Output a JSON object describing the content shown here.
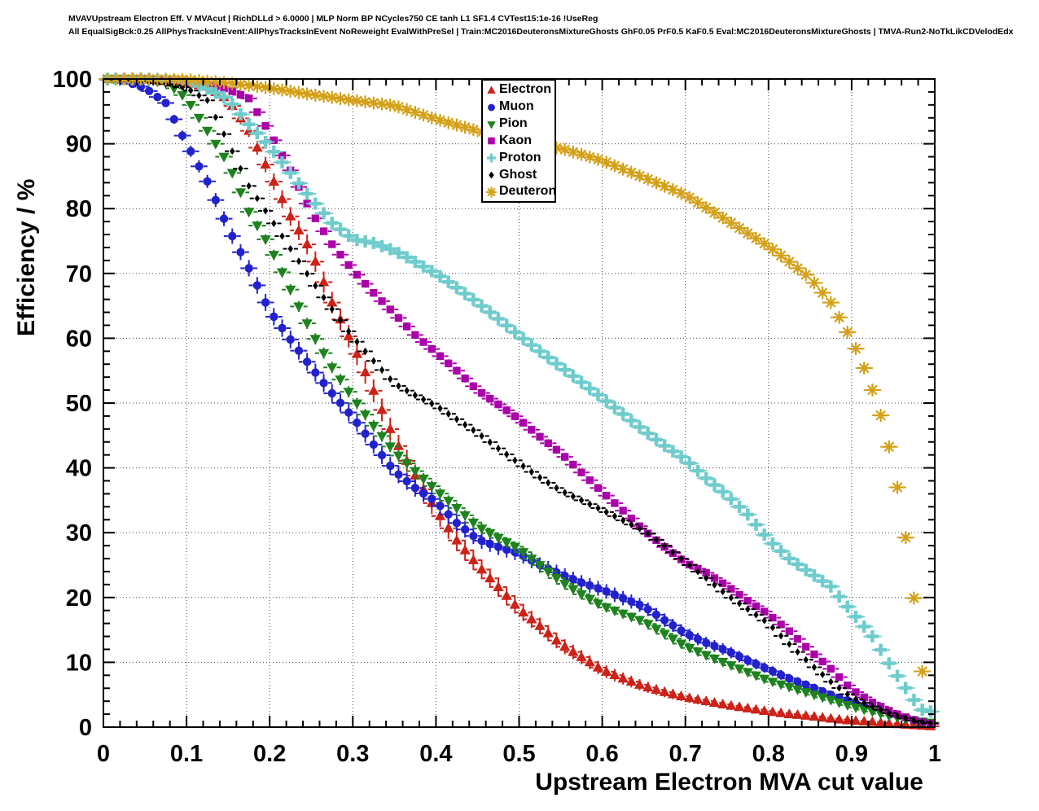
{
  "titles": {
    "line1": "MVAVUpstream Electron Eff. V MVAcut | RichDLLd > 6.0000 | MLP Norm BP NCycles750 CE tanh L1 SF1.4 CVTest15:1e-16 !UseReg",
    "line2": "All EqualSigBck:0.25 AllPhysTracksInEvent:AllPhysTracksInEvent NoReweight EvalWithPreSel | Train:MC2016DeuteronsMixtureGhosts GhF0.05 PrF0.5 KaF0.5 Eval:MC2016DeuteronsMixtureGhosts | TMVA-Run2-NoTkLikCDVelodEdx"
  },
  "axes": {
    "x": {
      "label": "Upstream Electron MVA cut value",
      "min": 0,
      "max": 1,
      "major_ticks": [
        0,
        0.1,
        0.2,
        0.3,
        0.4,
        0.5,
        0.6,
        0.7,
        0.8,
        0.9,
        1
      ],
      "tick_labels": [
        "0",
        "0.1",
        "0.2",
        "0.3",
        "0.4",
        "0.5",
        "0.6",
        "0.7",
        "0.8",
        "0.9",
        "1"
      ],
      "minor_step": 0.02
    },
    "y": {
      "label": "Efficiency / %",
      "min": 0,
      "max": 100,
      "major_ticks": [
        0,
        10,
        20,
        30,
        40,
        50,
        60,
        70,
        80,
        90,
        100
      ],
      "tick_labels": [
        "0",
        "10",
        "20",
        "30",
        "40",
        "50",
        "60",
        "70",
        "80",
        "90",
        "100"
      ],
      "minor_step": 2
    }
  },
  "legend": {
    "entries": [
      {
        "label": "Electron",
        "marker": "triangle-up",
        "color": "#cc2218"
      },
      {
        "label": "Muon",
        "marker": "circle",
        "color": "#2222cc"
      },
      {
        "label": "Pion",
        "marker": "triangle-down",
        "color": "#1e821e"
      },
      {
        "label": "Kaon",
        "marker": "square",
        "color": "#aa00aa"
      },
      {
        "label": "Proton",
        "marker": "plus",
        "color": "#70cccc"
      },
      {
        "label": "Ghost",
        "marker": "diamond",
        "color": "#000000"
      },
      {
        "label": "Deuteron",
        "marker": "asterisk",
        "color": "#d4a017"
      }
    ]
  },
  "chart_data": {
    "type": "scatter",
    "title": "",
    "xlabel": "Upstream Electron MVA cut value",
    "ylabel": "Efficiency / %",
    "xlim": [
      0,
      1
    ],
    "ylim": [
      0,
      100
    ],
    "grid": true,
    "grid_style": "dotted",
    "legend_position": "top-center",
    "marker_step": 0.01,
    "series": [
      {
        "name": "Electron",
        "marker": "triangle-up",
        "color": "#cc2218",
        "err": 14,
        "points": [
          [
            0,
            100
          ],
          [
            0.05,
            100
          ],
          [
            0.1,
            99.4
          ],
          [
            0.125,
            98.8
          ],
          [
            0.15,
            96.8
          ],
          [
            0.175,
            92
          ],
          [
            0.2,
            85.5
          ],
          [
            0.225,
            78.8
          ],
          [
            0.25,
            73.4
          ],
          [
            0.275,
            65.5
          ],
          [
            0.3,
            59
          ],
          [
            0.325,
            51.9
          ],
          [
            0.35,
            44.5
          ],
          [
            0.375,
            38.8
          ],
          [
            0.4,
            33.5
          ],
          [
            0.425,
            28.8
          ],
          [
            0.45,
            25
          ],
          [
            0.475,
            21.6
          ],
          [
            0.5,
            18.2
          ],
          [
            0.525,
            15.6
          ],
          [
            0.55,
            12.8
          ],
          [
            0.575,
            10.8
          ],
          [
            0.6,
            8.8
          ],
          [
            0.625,
            7.5
          ],
          [
            0.65,
            6.3
          ],
          [
            0.675,
            5.4
          ],
          [
            0.7,
            4.6
          ],
          [
            0.725,
            4
          ],
          [
            0.75,
            3.4
          ],
          [
            0.775,
            2.9
          ],
          [
            0.8,
            2.4
          ],
          [
            0.825,
            2
          ],
          [
            0.85,
            1.7
          ],
          [
            0.875,
            1.3
          ],
          [
            0.9,
            1
          ],
          [
            0.925,
            0.8
          ],
          [
            0.95,
            0.5
          ],
          [
            0.975,
            0.3
          ],
          [
            1,
            0.1
          ]
        ]
      },
      {
        "name": "Muon",
        "marker": "circle",
        "color": "#2222cc",
        "err": 11,
        "points": [
          [
            0,
            100
          ],
          [
            0.025,
            99.7
          ],
          [
            0.05,
            98.6
          ],
          [
            0.075,
            96.3
          ],
          [
            0.1,
            90
          ],
          [
            0.125,
            84.2
          ],
          [
            0.15,
            77
          ],
          [
            0.175,
            70.8
          ],
          [
            0.2,
            64.2
          ],
          [
            0.225,
            59.8
          ],
          [
            0.25,
            55.5
          ],
          [
            0.275,
            51.5
          ],
          [
            0.3,
            47.8
          ],
          [
            0.325,
            43.6
          ],
          [
            0.35,
            39.5
          ],
          [
            0.375,
            36.9
          ],
          [
            0.4,
            34.8
          ],
          [
            0.425,
            31.5
          ],
          [
            0.45,
            29
          ],
          [
            0.475,
            27.8
          ],
          [
            0.5,
            26.8
          ],
          [
            0.525,
            25
          ],
          [
            0.55,
            23.6
          ],
          [
            0.575,
            22.3
          ],
          [
            0.6,
            21.2
          ],
          [
            0.625,
            19.9
          ],
          [
            0.65,
            18.6
          ],
          [
            0.675,
            16.5
          ],
          [
            0.7,
            14.5
          ],
          [
            0.725,
            13
          ],
          [
            0.75,
            11.8
          ],
          [
            0.775,
            10.3
          ],
          [
            0.8,
            8.9
          ],
          [
            0.825,
            7.5
          ],
          [
            0.85,
            6.3
          ],
          [
            0.875,
            5
          ],
          [
            0.9,
            3.9
          ],
          [
            0.925,
            2.9
          ],
          [
            0.95,
            2
          ],
          [
            0.975,
            1.1
          ],
          [
            1,
            0.4
          ]
        ]
      },
      {
        "name": "Pion",
        "marker": "triangle-down",
        "color": "#1e821e",
        "err": 7,
        "points": [
          [
            0,
            100
          ],
          [
            0.05,
            100
          ],
          [
            0.075,
            99.6
          ],
          [
            0.1,
            97
          ],
          [
            0.125,
            92
          ],
          [
            0.15,
            87
          ],
          [
            0.175,
            79.5
          ],
          [
            0.2,
            74.2
          ],
          [
            0.225,
            67.5
          ],
          [
            0.25,
            61
          ],
          [
            0.275,
            55.5
          ],
          [
            0.3,
            50.8
          ],
          [
            0.325,
            46.5
          ],
          [
            0.35,
            42.5
          ],
          [
            0.375,
            39.5
          ],
          [
            0.4,
            36.6
          ],
          [
            0.425,
            33.8
          ],
          [
            0.45,
            31
          ],
          [
            0.475,
            29.2
          ],
          [
            0.5,
            27.5
          ],
          [
            0.525,
            25
          ],
          [
            0.55,
            22.5
          ],
          [
            0.575,
            20.5
          ],
          [
            0.6,
            18.7
          ],
          [
            0.625,
            17.5
          ],
          [
            0.65,
            16.3
          ],
          [
            0.675,
            14.4
          ],
          [
            0.7,
            12.5
          ],
          [
            0.725,
            11.1
          ],
          [
            0.75,
            9.8
          ],
          [
            0.775,
            8.5
          ],
          [
            0.8,
            7.2
          ],
          [
            0.825,
            6.2
          ],
          [
            0.85,
            5.2
          ],
          [
            0.875,
            4.2
          ],
          [
            0.9,
            3.2
          ],
          [
            0.925,
            2.4
          ],
          [
            0.95,
            1.6
          ],
          [
            0.975,
            1
          ],
          [
            1,
            0.6
          ]
        ]
      },
      {
        "name": "Kaon",
        "marker": "square",
        "color": "#aa00aa",
        "err": 5,
        "points": [
          [
            0,
            100
          ],
          [
            0.05,
            100
          ],
          [
            0.1,
            99.7
          ],
          [
            0.125,
            99.2
          ],
          [
            0.15,
            98.4
          ],
          [
            0.175,
            97
          ],
          [
            0.2,
            91.7
          ],
          [
            0.225,
            85.9
          ],
          [
            0.25,
            79.5
          ],
          [
            0.275,
            74.5
          ],
          [
            0.3,
            70.5
          ],
          [
            0.325,
            67
          ],
          [
            0.35,
            63.8
          ],
          [
            0.375,
            60.5
          ],
          [
            0.4,
            57.8
          ],
          [
            0.425,
            55
          ],
          [
            0.45,
            52
          ],
          [
            0.475,
            49.8
          ],
          [
            0.5,
            47.5
          ],
          [
            0.525,
            44.8
          ],
          [
            0.55,
            42.3
          ],
          [
            0.575,
            39.3
          ],
          [
            0.6,
            36.3
          ],
          [
            0.625,
            33.4
          ],
          [
            0.65,
            30.4
          ],
          [
            0.675,
            27.8
          ],
          [
            0.7,
            25.4
          ],
          [
            0.725,
            23.8
          ],
          [
            0.75,
            21.8
          ],
          [
            0.775,
            19.5
          ],
          [
            0.8,
            17.4
          ],
          [
            0.825,
            14.8
          ],
          [
            0.85,
            11.8
          ],
          [
            0.875,
            9
          ],
          [
            0.9,
            5.8
          ],
          [
            0.925,
            3.8
          ],
          [
            0.95,
            2.2
          ],
          [
            0.975,
            1.1
          ],
          [
            1,
            0.4
          ]
        ]
      },
      {
        "name": "Proton",
        "marker": "plus",
        "color": "#70cccc",
        "err": 5,
        "points": [
          [
            0,
            100
          ],
          [
            0.05,
            100
          ],
          [
            0.1,
            99.6
          ],
          [
            0.125,
            98.5
          ],
          [
            0.15,
            96.9
          ],
          [
            0.175,
            93
          ],
          [
            0.2,
            89.6
          ],
          [
            0.225,
            85.5
          ],
          [
            0.25,
            81.5
          ],
          [
            0.275,
            77.8
          ],
          [
            0.3,
            75.3
          ],
          [
            0.325,
            74.7
          ],
          [
            0.35,
            73.5
          ],
          [
            0.375,
            71.8
          ],
          [
            0.4,
            70
          ],
          [
            0.425,
            67.8
          ],
          [
            0.45,
            65.5
          ],
          [
            0.475,
            63
          ],
          [
            0.5,
            60.4
          ],
          [
            0.525,
            58
          ],
          [
            0.55,
            55.6
          ],
          [
            0.575,
            53.2
          ],
          [
            0.6,
            50.8
          ],
          [
            0.625,
            48.3
          ],
          [
            0.65,
            45.8
          ],
          [
            0.675,
            43.4
          ],
          [
            0.7,
            41.3
          ],
          [
            0.725,
            38.4
          ],
          [
            0.75,
            35.8
          ],
          [
            0.775,
            32.8
          ],
          [
            0.8,
            28.9
          ],
          [
            0.825,
            26
          ],
          [
            0.85,
            23.8
          ],
          [
            0.875,
            21.7
          ],
          [
            0.9,
            17.8
          ],
          [
            0.925,
            14
          ],
          [
            0.95,
            8.8
          ],
          [
            0.975,
            4.2
          ],
          [
            0.99,
            1.9
          ],
          [
            1,
            2.9
          ]
        ]
      },
      {
        "name": "Ghost",
        "marker": "diamond",
        "color": "#000000",
        "err": 4,
        "points": [
          [
            0,
            100
          ],
          [
            0.05,
            99.6
          ],
          [
            0.075,
            99.2
          ],
          [
            0.1,
            98.6
          ],
          [
            0.125,
            96.7
          ],
          [
            0.15,
            90.2
          ],
          [
            0.175,
            83.5
          ],
          [
            0.2,
            78.7
          ],
          [
            0.225,
            73.8
          ],
          [
            0.25,
            69
          ],
          [
            0.275,
            64.5
          ],
          [
            0.3,
            60.2
          ],
          [
            0.325,
            56.5
          ],
          [
            0.35,
            53
          ],
          [
            0.375,
            51.2
          ],
          [
            0.4,
            49.6
          ],
          [
            0.425,
            47.5
          ],
          [
            0.45,
            45.4
          ],
          [
            0.475,
            43
          ],
          [
            0.5,
            40.7
          ],
          [
            0.525,
            38.5
          ],
          [
            0.55,
            36.5
          ],
          [
            0.575,
            35
          ],
          [
            0.6,
            33.5
          ],
          [
            0.625,
            31.9
          ],
          [
            0.65,
            30.3
          ],
          [
            0.675,
            28
          ],
          [
            0.7,
            25.5
          ],
          [
            0.725,
            23
          ],
          [
            0.75,
            20.4
          ],
          [
            0.775,
            18.2
          ],
          [
            0.8,
            16
          ],
          [
            0.825,
            12.8
          ],
          [
            0.85,
            9.8
          ],
          [
            0.875,
            7
          ],
          [
            0.9,
            4.6
          ],
          [
            0.925,
            3.2
          ],
          [
            0.95,
            1.9
          ],
          [
            0.975,
            1
          ],
          [
            1,
            0.5
          ]
        ]
      },
      {
        "name": "Deuteron",
        "marker": "asterisk",
        "color": "#d4a017",
        "err": 5,
        "points": [
          [
            0,
            100
          ],
          [
            0.05,
            100
          ],
          [
            0.1,
            99.9
          ],
          [
            0.15,
            99.4
          ],
          [
            0.2,
            98.6
          ],
          [
            0.25,
            97.6
          ],
          [
            0.3,
            96.7
          ],
          [
            0.35,
            95.9
          ],
          [
            0.4,
            93.8
          ],
          [
            0.45,
            92
          ],
          [
            0.5,
            90
          ],
          [
            0.55,
            89.3
          ],
          [
            0.6,
            87.4
          ],
          [
            0.65,
            84.8
          ],
          [
            0.7,
            82.1
          ],
          [
            0.75,
            78.2
          ],
          [
            0.8,
            74.2
          ],
          [
            0.825,
            71.8
          ],
          [
            0.85,
            69.3
          ],
          [
            0.875,
            65.5
          ],
          [
            0.9,
            59.8
          ],
          [
            0.91,
            57
          ],
          [
            0.92,
            53.8
          ],
          [
            0.93,
            50.2
          ],
          [
            0.94,
            46
          ],
          [
            0.95,
            40.5
          ],
          [
            0.96,
            33.5
          ],
          [
            0.97,
            25
          ],
          [
            0.98,
            14.8
          ],
          [
            0.99,
            2.4
          ]
        ]
      }
    ]
  },
  "style": {
    "frame_color": "#000000",
    "grid_color": "#444444",
    "background": "#ffffff"
  }
}
